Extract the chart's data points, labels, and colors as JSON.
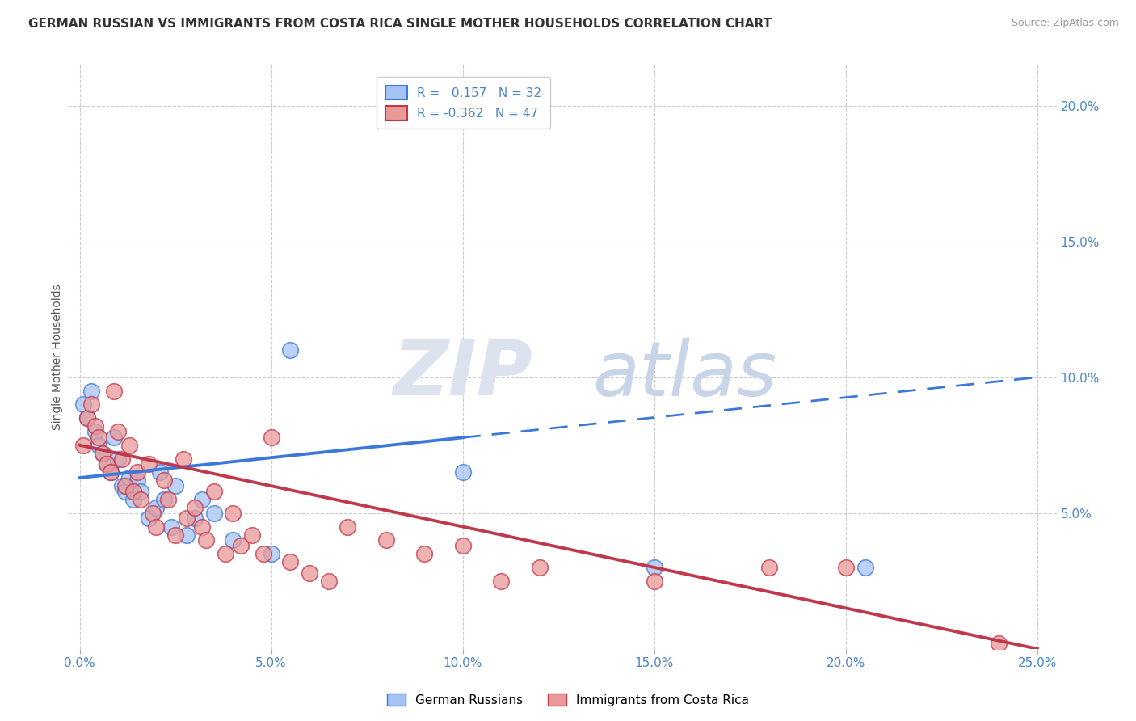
{
  "title": "GERMAN RUSSIAN VS IMMIGRANTS FROM COSTA RICA SINGLE MOTHER HOUSEHOLDS CORRELATION CHART",
  "source": "Source: ZipAtlas.com",
  "ylabel": "Single Mother Households",
  "xlabel_ticks": [
    "0.0%",
    "5.0%",
    "10.0%",
    "15.0%",
    "20.0%",
    "25.0%"
  ],
  "xlabel_vals": [
    0.0,
    0.05,
    0.1,
    0.15,
    0.2,
    0.25
  ],
  "ylabel_ticks": [
    "5.0%",
    "10.0%",
    "15.0%",
    "20.0%"
  ],
  "ylabel_vals": [
    0.05,
    0.1,
    0.15,
    0.2
  ],
  "xlim": [
    -0.003,
    0.255
  ],
  "ylim": [
    0.0,
    0.215
  ],
  "legend1_label": "German Russians",
  "legend2_label": "Immigrants from Costa Rica",
  "r1": 0.157,
  "n1": 32,
  "r2": -0.362,
  "n2": 47,
  "blue_color": "#a4c2f4",
  "pink_color": "#ea9999",
  "line_blue": "#3c78d8",
  "line_pink": "#c0394b",
  "blue_line_solid_end": 0.1,
  "blue_line_start_y": 0.063,
  "blue_line_end_y": 0.1,
  "pink_line_start_y": 0.075,
  "pink_line_end_y": 0.0,
  "blue_scatter_x": [
    0.001,
    0.002,
    0.003,
    0.004,
    0.005,
    0.006,
    0.007,
    0.008,
    0.009,
    0.01,
    0.011,
    0.012,
    0.013,
    0.014,
    0.015,
    0.016,
    0.018,
    0.02,
    0.021,
    0.022,
    0.024,
    0.025,
    0.028,
    0.03,
    0.032,
    0.035,
    0.04,
    0.05,
    0.055,
    0.1,
    0.15,
    0.205
  ],
  "blue_scatter_y": [
    0.09,
    0.085,
    0.095,
    0.08,
    0.075,
    0.072,
    0.068,
    0.065,
    0.078,
    0.07,
    0.06,
    0.058,
    0.063,
    0.055,
    0.062,
    0.058,
    0.048,
    0.052,
    0.065,
    0.055,
    0.045,
    0.06,
    0.042,
    0.048,
    0.055,
    0.05,
    0.04,
    0.035,
    0.11,
    0.065,
    0.03,
    0.03
  ],
  "pink_scatter_x": [
    0.001,
    0.002,
    0.003,
    0.004,
    0.005,
    0.006,
    0.007,
    0.008,
    0.009,
    0.01,
    0.011,
    0.012,
    0.013,
    0.014,
    0.015,
    0.016,
    0.018,
    0.019,
    0.02,
    0.022,
    0.023,
    0.025,
    0.027,
    0.028,
    0.03,
    0.032,
    0.033,
    0.035,
    0.038,
    0.04,
    0.042,
    0.045,
    0.048,
    0.05,
    0.055,
    0.06,
    0.065,
    0.07,
    0.08,
    0.09,
    0.1,
    0.11,
    0.12,
    0.15,
    0.18,
    0.2,
    0.24
  ],
  "pink_scatter_y": [
    0.075,
    0.085,
    0.09,
    0.082,
    0.078,
    0.072,
    0.068,
    0.065,
    0.095,
    0.08,
    0.07,
    0.06,
    0.075,
    0.058,
    0.065,
    0.055,
    0.068,
    0.05,
    0.045,
    0.062,
    0.055,
    0.042,
    0.07,
    0.048,
    0.052,
    0.045,
    0.04,
    0.058,
    0.035,
    0.05,
    0.038,
    0.042,
    0.035,
    0.078,
    0.032,
    0.028,
    0.025,
    0.045,
    0.04,
    0.035,
    0.038,
    0.025,
    0.03,
    0.025,
    0.03,
    0.03,
    0.002
  ]
}
